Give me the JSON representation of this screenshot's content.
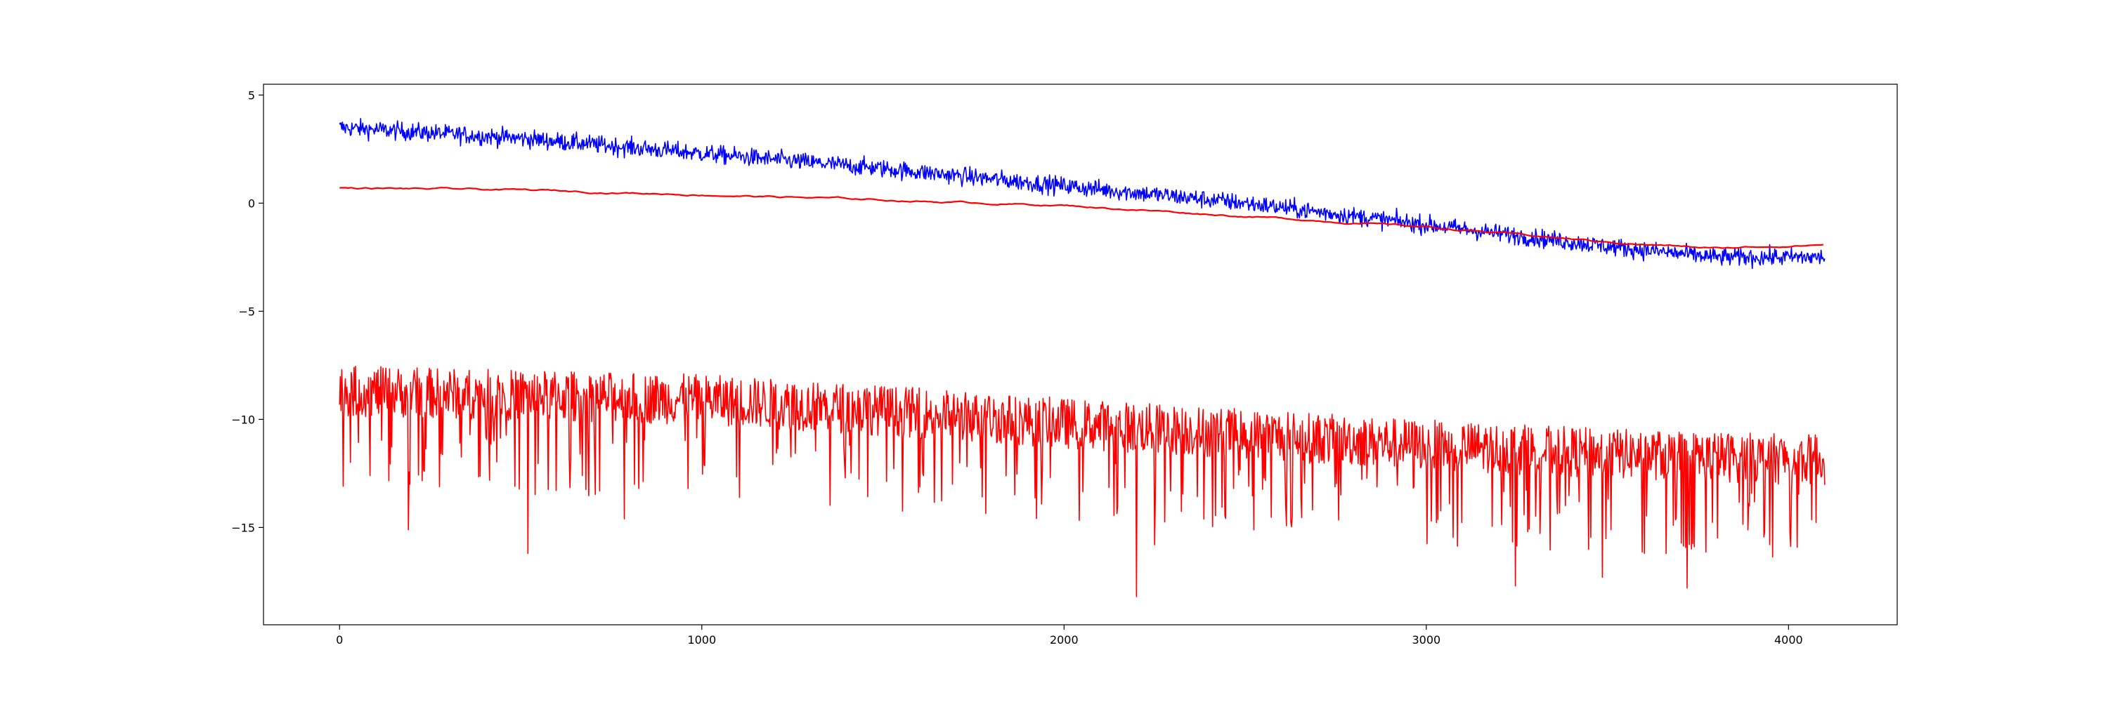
{
  "chart_data": {
    "type": "line",
    "title": "",
    "xlabel": "",
    "ylabel": "",
    "xlim": [
      -210,
      4300
    ],
    "ylim": [
      -19.5,
      5.5
    ],
    "x_ticks": [
      0,
      1000,
      2000,
      3000,
      4000
    ],
    "x_tick_labels": [
      "0",
      "1000",
      "2000",
      "3000",
      "4000"
    ],
    "y_ticks": [
      5,
      0,
      -5,
      -10,
      -15
    ],
    "y_tick_labels": [
      "5",
      "0",
      "−5",
      "−10",
      "−15"
    ],
    "grid": false,
    "legend": "none",
    "x_range": [
      0,
      4100
    ],
    "series": [
      {
        "color": "#0000ff",
        "style": "noisy",
        "trend_x": [
          0,
          500,
          1000,
          1500,
          2000,
          2500,
          3000,
          3500,
          3800,
          4100
        ],
        "trend_y": [
          3.5,
          3.0,
          2.3,
          1.6,
          0.8,
          0.0,
          -1.0,
          -2.0,
          -2.5,
          -2.5
        ],
        "noise_amplitude": 0.35
      },
      {
        "color": "#ff0000",
        "style": "smooth",
        "trend_x": [
          0,
          500,
          1000,
          1500,
          2000,
          2500,
          3000,
          3500,
          3800,
          4100
        ],
        "trend_y": [
          0.7,
          0.6,
          0.4,
          0.15,
          -0.1,
          -0.6,
          -1.1,
          -1.8,
          -2.1,
          -1.9
        ],
        "noise_amplitude": 0.05
      },
      {
        "color": "#ff0000",
        "style": "spiky",
        "trend_x": [
          0,
          500,
          1000,
          1500,
          2000,
          2500,
          3000,
          3500,
          4100
        ],
        "trend_y": [
          -8.8,
          -9.0,
          -9.2,
          -9.7,
          -10.3,
          -10.8,
          -11.3,
          -11.7,
          -12.0
        ],
        "noise_amplitude": 0.9,
        "spike_x": [
          190,
          520,
          785,
          2200,
          2250,
          3245,
          3485,
          3720
        ],
        "spike_y": [
          -15.1,
          -16.2,
          -14.6,
          -18.2,
          -15.8,
          -17.7,
          -17.3,
          -17.8
        ]
      }
    ]
  }
}
